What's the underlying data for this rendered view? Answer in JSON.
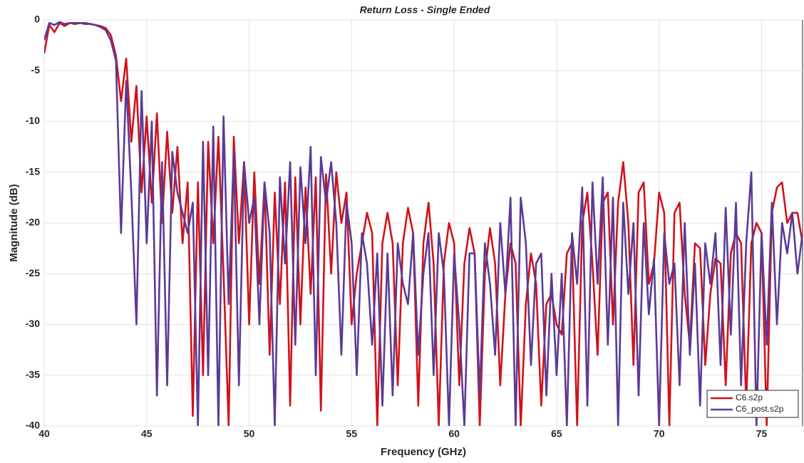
{
  "chart_data": {
    "type": "line",
    "title": "Return Loss - Single Ended",
    "x_label": "Frequency (GHz)",
    "y_label": "Magnitude (dB)",
    "xlim": [
      40,
      77
    ],
    "xticks": [
      40,
      45,
      50,
      55,
      60,
      65,
      70,
      75
    ],
    "ylim": [
      -40,
      0
    ],
    "yticks": [
      -40,
      -35,
      -30,
      -25,
      -20,
      -15,
      -10,
      -5,
      0
    ],
    "grid": true,
    "legend": "lower right",
    "x": [
      40,
      40.25,
      40.5,
      40.75,
      41,
      41.25,
      41.5,
      41.75,
      42,
      42.25,
      42.5,
      42.75,
      43,
      43.25,
      43.5,
      43.75,
      44,
      44.25,
      44.5,
      44.75,
      45,
      45.25,
      45.5,
      45.75,
      46,
      46.25,
      46.5,
      46.75,
      47,
      47.25,
      47.5,
      47.75,
      48,
      48.25,
      48.5,
      48.75,
      49,
      49.25,
      49.5,
      49.75,
      50,
      50.25,
      50.5,
      50.75,
      51,
      51.25,
      51.5,
      51.75,
      52,
      52.25,
      52.5,
      52.75,
      53,
      53.25,
      53.5,
      53.75,
      54,
      54.25,
      54.5,
      54.75,
      55,
      55.25,
      55.5,
      55.75,
      56,
      56.25,
      56.5,
      56.75,
      57,
      57.25,
      57.5,
      57.75,
      58,
      58.25,
      58.5,
      58.75,
      59,
      59.25,
      59.5,
      59.75,
      60,
      60.25,
      60.5,
      60.75,
      61,
      61.25,
      61.5,
      61.75,
      62,
      62.25,
      62.5,
      62.75,
      63,
      63.25,
      63.5,
      63.75,
      64,
      64.25,
      64.5,
      64.75,
      65,
      65.25,
      65.5,
      65.75,
      66,
      66.25,
      66.5,
      66.75,
      67,
      67.25,
      67.5,
      67.75,
      68,
      68.25,
      68.5,
      68.75,
      69,
      69.25,
      69.5,
      69.75,
      70,
      70.25,
      70.5,
      70.75,
      71,
      71.25,
      71.5,
      71.75,
      72,
      72.25,
      72.5,
      72.75,
      73,
      73.25,
      73.5,
      73.75,
      74,
      74.25,
      74.5,
      74.75,
      75,
      75.25,
      75.5,
      75.75,
      76,
      76.25,
      76.5,
      76.75,
      77
    ],
    "series": [
      {
        "name": "C6.s2p",
        "color": "#d0121b",
        "values": [
          -3.3,
          -0.5,
          -1.2,
          -0.3,
          -0.6,
          -0.3,
          -0.4,
          -0.3,
          -0.4,
          -0.4,
          -0.5,
          -0.6,
          -0.8,
          -1.5,
          -3.5,
          -8,
          -3.8,
          -12,
          -6.5,
          -17,
          -9.5,
          -18,
          -9.2,
          -20,
          -11,
          -19,
          -12.5,
          -22,
          -16,
          -39,
          -16,
          -35,
          -12,
          -22,
          -11.5,
          -25,
          -40,
          -11.5,
          -22,
          -14,
          -30,
          -15,
          -26,
          -16,
          -33,
          -17,
          -28,
          -16,
          -38,
          -15.5,
          -30,
          -16.5,
          -27,
          -15.5,
          -38.5,
          -15.2,
          -25,
          -15,
          -20,
          -17,
          -30,
          -25,
          -22,
          -19,
          -21,
          -40,
          -22,
          -19,
          -22,
          -36,
          -22,
          -18.5,
          -21,
          -38,
          -22,
          -18,
          -24,
          -40,
          -24,
          -20,
          -22,
          -36,
          -24,
          -20.5,
          -23,
          -40,
          -25,
          -20.5,
          -24,
          -36,
          -27,
          -22,
          -24,
          -40,
          -28,
          -23,
          -26,
          -38,
          -28,
          -27,
          -30,
          -31,
          -23,
          -22,
          -40,
          -20,
          -17,
          -24,
          -33,
          -18,
          -17,
          -30,
          -18,
          -14,
          -20,
          -34,
          -17,
          -16,
          -26,
          -24,
          -17,
          -19,
          -40,
          -19,
          -18,
          -27,
          -32,
          -22,
          -22.5,
          -34,
          -27,
          -23.5,
          -24,
          -36,
          -23,
          -21,
          -22,
          -38,
          -22,
          -20,
          -21,
          -40,
          -19,
          -16.5,
          -16,
          -20,
          -19,
          -19,
          -22
        ]
      },
      {
        "name": "C6_post.s2p",
        "color": "#5b3a96",
        "values": [
          -2,
          -0.3,
          -0.5,
          -0.2,
          -0.4,
          -0.3,
          -0.3,
          -0.3,
          -0.3,
          -0.4,
          -0.5,
          -0.7,
          -1,
          -2,
          -4,
          -21,
          -6,
          -17,
          -30,
          -7,
          -22,
          -10,
          -37,
          -14,
          -36,
          -13,
          -17,
          -19,
          -21,
          -18,
          -40,
          -12,
          -35,
          -10.5,
          -40,
          -9.5,
          -28,
          -13,
          -36,
          -14,
          -20,
          -17.5,
          -30,
          -16,
          -21,
          -40,
          -15.5,
          -24,
          -14,
          -32,
          -14.5,
          -22,
          -12.5,
          -35,
          -13.5,
          -18,
          -14,
          -20,
          -33,
          -18,
          -22,
          -35,
          -21,
          -24,
          -32,
          -23,
          -38,
          -23,
          -37,
          -22,
          -26,
          -28,
          -21,
          -33,
          -25,
          -21,
          -35,
          -21,
          -25,
          -40,
          -23,
          -30,
          -40,
          -23,
          -23,
          -37,
          -22,
          -26,
          -33,
          -20,
          -27,
          -17.5,
          -40,
          -17.5,
          -22,
          -34,
          -24,
          -23,
          -37,
          -25,
          -35,
          -25,
          -40,
          -21,
          -26,
          -16.5,
          -38,
          -16,
          -26,
          -15.5,
          -32,
          -17.5,
          -40,
          -18,
          -27,
          -20,
          -37,
          -20,
          -29,
          -23.5,
          -40,
          -21,
          -26,
          -24,
          -36,
          -20,
          -33,
          -24,
          -38,
          -22,
          -26,
          -21,
          -34,
          -18.5,
          -31,
          -18,
          -36,
          -22,
          -15,
          -40,
          -21,
          -32,
          -18,
          -30,
          -20,
          -23,
          -19,
          -25,
          -21
        ]
      }
    ]
  }
}
